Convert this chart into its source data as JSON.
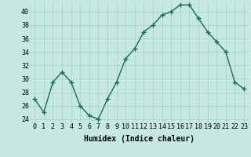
{
  "x": [
    0,
    1,
    2,
    3,
    4,
    5,
    6,
    7,
    8,
    9,
    10,
    11,
    12,
    13,
    14,
    15,
    16,
    17,
    18,
    19,
    20,
    21,
    22,
    23
  ],
  "y": [
    27,
    25,
    29.5,
    31,
    29.5,
    26,
    24.5,
    24,
    27,
    29.5,
    33,
    34.5,
    37,
    38,
    39.5,
    40,
    41,
    41,
    39,
    37,
    35.5,
    34,
    29.5,
    28.5
  ],
  "line_color": "#1a6b5a",
  "marker": "+",
  "marker_size": 4,
  "bg_color": "#c5e8e2",
  "grid_color": "#a8cfc8",
  "xlabel": "Humidex (Indice chaleur)",
  "xlim": [
    -0.5,
    23.5
  ],
  "ylim": [
    23.5,
    41.5
  ],
  "yticks": [
    24,
    26,
    28,
    30,
    32,
    34,
    36,
    38,
    40
  ],
  "xticks": [
    0,
    1,
    2,
    3,
    4,
    5,
    6,
    7,
    8,
    9,
    10,
    11,
    12,
    13,
    14,
    15,
    16,
    17,
    18,
    19,
    20,
    21,
    22,
    23
  ],
  "xlabel_fontsize": 7,
  "tick_fontsize": 6,
  "linewidth": 1.0
}
